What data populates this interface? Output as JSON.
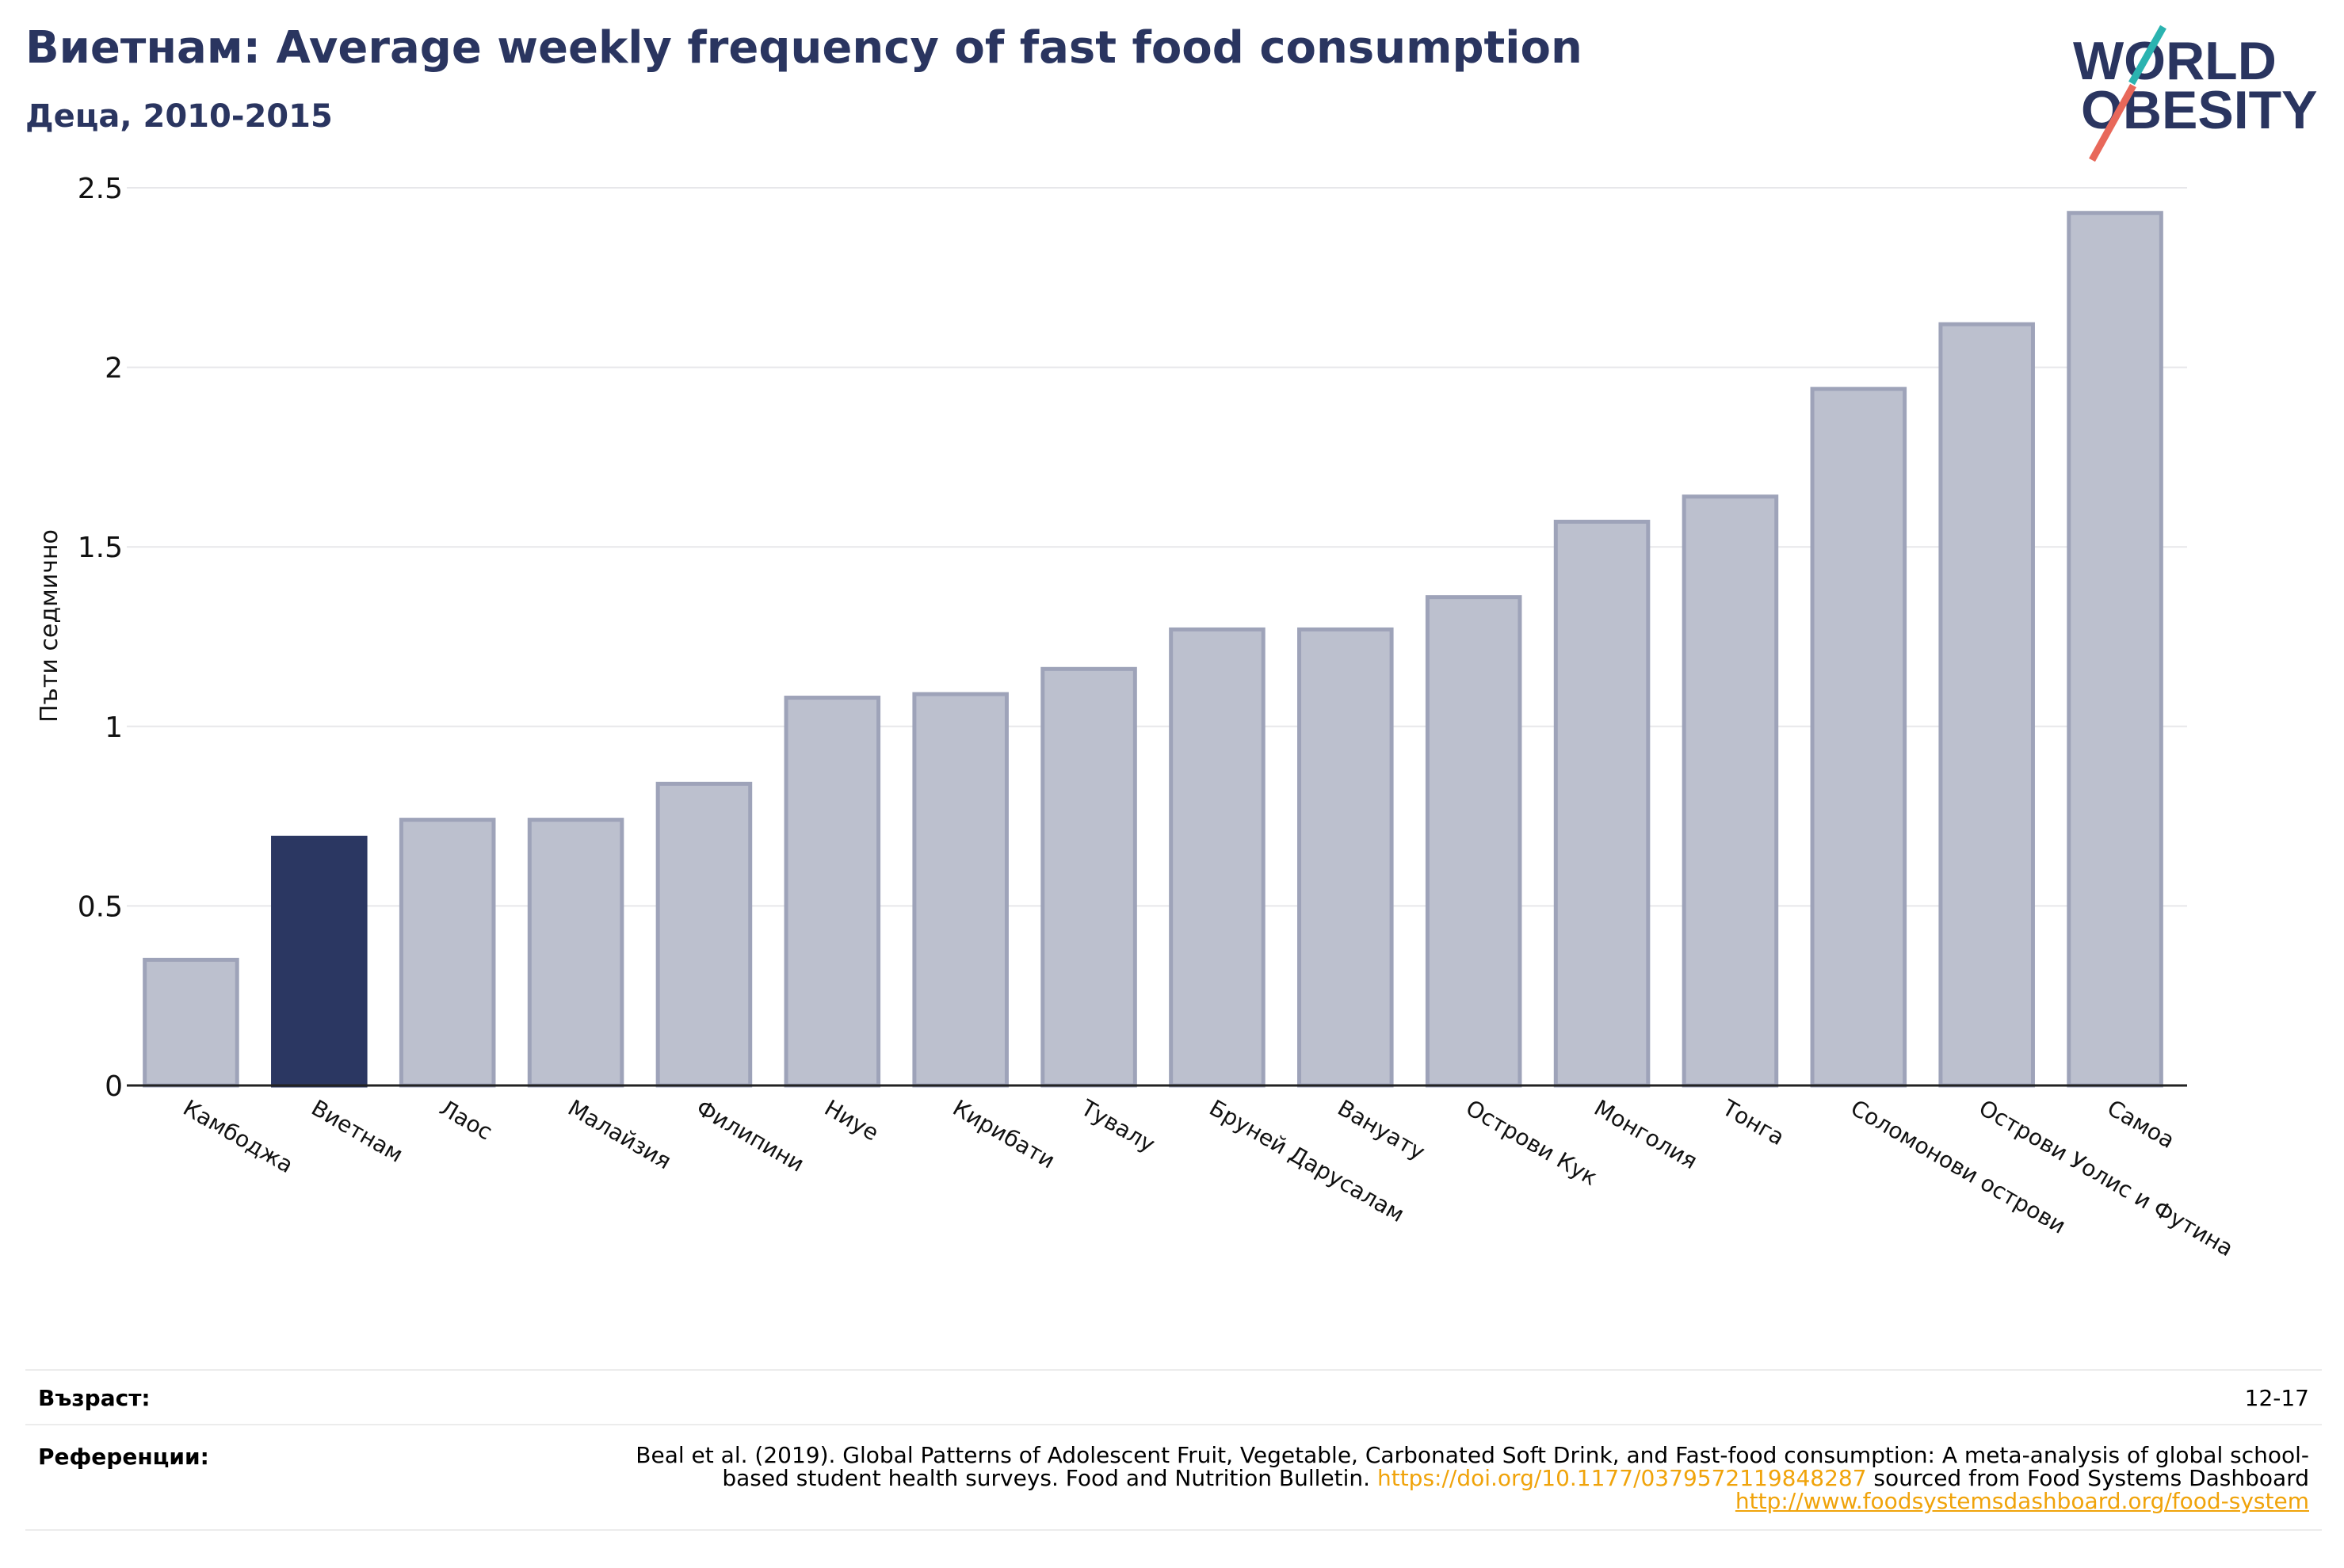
{
  "title": "Виетнам: Average weekly frequency of fast food consumption",
  "subtitle": "Деца, 2010-2015",
  "logo": {
    "line1": "WORLD",
    "line2": "OBESITY"
  },
  "colors": {
    "highlight": "#2b3762",
    "bar": "#bcc0ce",
    "bar_edge": "#9ea3b9",
    "title": "#2a3560",
    "link": "#f0a30a"
  },
  "chart_data": {
    "type": "bar",
    "ylabel": "Пъти седмично",
    "ylim": [
      0,
      2.5
    ],
    "yticks": [
      "0",
      "0.5",
      "1",
      "1.5",
      "2",
      "2.5"
    ],
    "grid": true,
    "highlight_category": "Виетнам",
    "categories": [
      "Камбоджа",
      "Виетнам",
      "Лаос",
      "Малайзия",
      "Филипини",
      "Ниуе",
      "Кирибати",
      "Тувалу",
      "Бруней Дарусалам",
      "Вануату",
      "Острови Кук",
      "Монголия",
      "Тонга",
      "Соломонови острови",
      "Острови Уолис и Футина",
      "Самоа"
    ],
    "values": [
      0.35,
      0.69,
      0.74,
      0.74,
      0.84,
      1.08,
      1.09,
      1.16,
      1.27,
      1.27,
      1.36,
      1.57,
      1.64,
      1.94,
      2.12,
      2.43
    ]
  },
  "meta": {
    "age_label": "Възраст:",
    "age_value": "12-17",
    "ref_label": "Референции:",
    "ref_text_1": "Beal et al. (2019). Global Patterns of Adolescent Fruit, Vegetable, Carbonated Soft Drink, and Fast-food consumption: A meta-analysis of global school-based student health surveys. Food and Nutrition Bulletin. ",
    "ref_link_1": "https://doi.org/10.1177/0379572119848287",
    "ref_text_2": " sourced from Food Systems Dashboard ",
    "ref_link_2": "http://www.foodsystemsdashboard.org/food-system"
  }
}
